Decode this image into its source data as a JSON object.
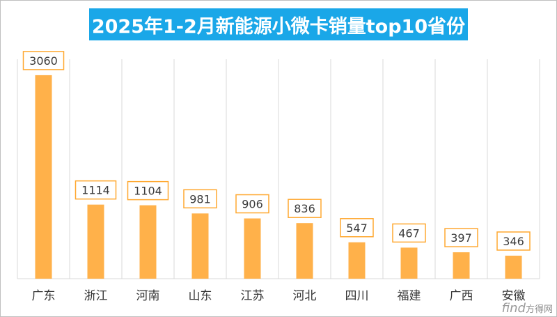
{
  "chart_data": {
    "type": "bar",
    "title": "2025年1-2月新能源小微卡销量top10省份",
    "categories": [
      "广东",
      "浙江",
      "河南",
      "山东",
      "江苏",
      "河北",
      "四川",
      "福建",
      "广西",
      "安徽"
    ],
    "values": [
      3060,
      1114,
      1104,
      981,
      906,
      836,
      547,
      467,
      397,
      346
    ],
    "ylim": [
      0,
      3300
    ],
    "grid": "vertical category separators",
    "colors": {
      "bar": "#ffb14a",
      "label_border": "#ffa830",
      "label_text": "#3b3b3b",
      "title_bg": "#1aa7e8"
    }
  },
  "watermark": {
    "latin": "find",
    "cn": "方得网"
  }
}
